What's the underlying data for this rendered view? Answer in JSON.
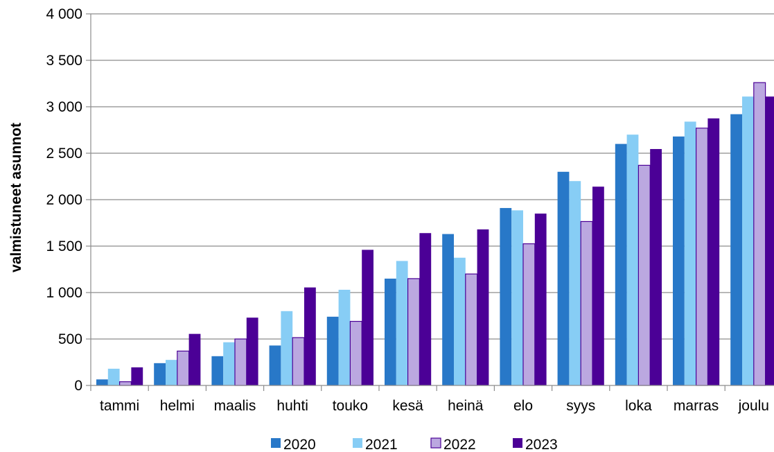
{
  "chart_data": {
    "type": "bar",
    "categories": [
      "tammi",
      "helmi",
      "maalis",
      "huhti",
      "touko",
      "kesä",
      "heinä",
      "elo",
      "syys",
      "loka",
      "marras",
      "joulu"
    ],
    "series": [
      {
        "name": "2020",
        "color": "#2878c8",
        "values": [
          65,
          240,
          315,
          430,
          740,
          1150,
          1630,
          1910,
          2300,
          2600,
          2680,
          2920
        ]
      },
      {
        "name": "2021",
        "color": "#87cdf5",
        "values": [
          180,
          275,
          465,
          800,
          1030,
          1340,
          1375,
          1885,
          2200,
          2700,
          2840,
          3110
        ]
      },
      {
        "name": "2022",
        "color": "#bba8e0",
        "values": [
          40,
          370,
          500,
          515,
          690,
          1150,
          1200,
          1525,
          1765,
          2370,
          2770,
          3260
        ]
      },
      {
        "name": "2023",
        "color": "#4b0096",
        "values": [
          195,
          555,
          730,
          1055,
          1460,
          1640,
          1680,
          1850,
          2140,
          2545,
          2875,
          3110
        ]
      }
    ],
    "ylabel": "valmistuneet asunnot",
    "ylim": [
      0,
      4000
    ],
    "yticks": [
      "0",
      "500",
      "1 000",
      "1 500",
      "2 000",
      "2 500",
      "3 000",
      "3 500",
      "4 000"
    ],
    "grid": true,
    "legend": "bottom"
  }
}
